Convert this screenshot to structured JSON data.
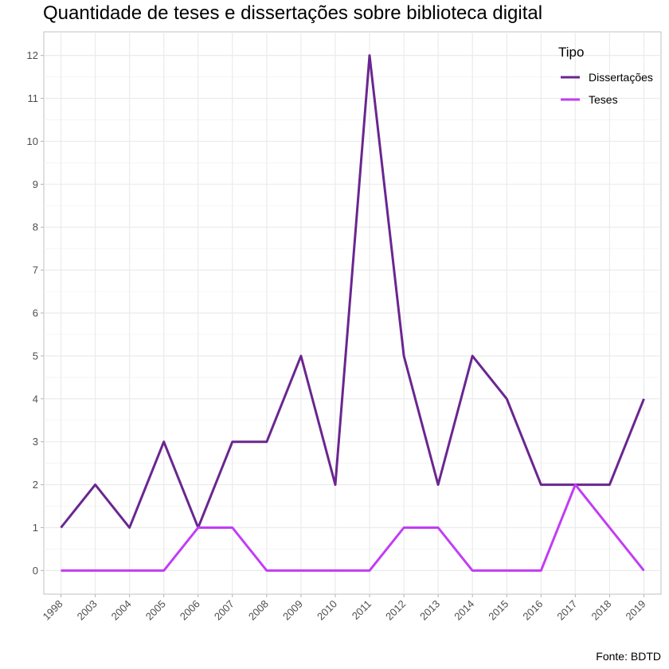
{
  "chart_data": {
    "type": "line",
    "title": "Quantidade de teses e dissertações sobre biblioteca digital",
    "xlabel": "",
    "ylabel": "",
    "categories": [
      "1998",
      "2003",
      "2004",
      "2005",
      "2006",
      "2007",
      "2008",
      "2009",
      "2010",
      "2011",
      "2012",
      "2013",
      "2014",
      "2015",
      "2016",
      "2017",
      "2018",
      "2019"
    ],
    "series": [
      {
        "name": "Dissertações",
        "color": "#6a2690",
        "values": [
          1,
          2,
          1,
          3,
          1,
          3,
          3,
          5,
          2,
          12,
          5,
          2,
          5,
          4,
          2,
          2,
          2,
          4
        ]
      },
      {
        "name": "Teses",
        "color": "#c23cf5",
        "values": [
          0,
          0,
          0,
          0,
          1,
          1,
          0,
          0,
          0,
          0,
          1,
          1,
          0,
          0,
          0,
          2,
          1,
          0
        ]
      }
    ],
    "ylim": [
      -0.55,
      12.55
    ],
    "yticks": [
      0,
      1,
      2,
      3,
      4,
      5,
      6,
      7,
      8,
      9,
      10,
      11,
      12
    ],
    "grid": true,
    "legend": {
      "title": "Tipo",
      "position": "top-right"
    },
    "caption": "Fonte: BDTD"
  }
}
